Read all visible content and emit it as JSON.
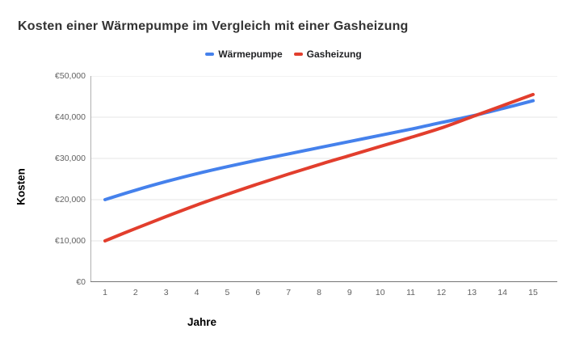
{
  "title": "Kosten einer Wärmepumpe im Vergleich mit einer Gasheizung",
  "colors": {
    "background": "#ffffff",
    "title_text": "#333333",
    "legend_text": "#202124",
    "axis_title_text": "#000000",
    "tick_label_text": "#616161",
    "gridline": "#e6e6e6",
    "y_axis_line": "#b0b0b0",
    "x_baseline": "#757575",
    "waermepumpe_blue": "#4581ec",
    "gasheizung_red": "#e23e2d"
  },
  "chart_data": {
    "type": "line",
    "title": "Kosten einer Wärmepumpe im Vergleich mit einer Gasheizung",
    "xlabel": "Jahre",
    "ylabel": "Kosten",
    "x": [
      1,
      2,
      3,
      4,
      5,
      6,
      7,
      8,
      9,
      10,
      11,
      12,
      13,
      14,
      15
    ],
    "series": [
      {
        "name": "Wärmepumpe",
        "color": "#4581ec",
        "values": [
          20000,
          22300,
          24400,
          26300,
          28000,
          29600,
          31100,
          32600,
          34100,
          35600,
          37100,
          38700,
          40300,
          42100,
          44000
        ]
      },
      {
        "name": "Gasheizung",
        "color": "#e23e2d",
        "values": [
          10000,
          13000,
          15900,
          18700,
          21300,
          23800,
          26200,
          28500,
          30700,
          32900,
          35100,
          37400,
          40100,
          42800,
          45500
        ]
      }
    ],
    "ylim": [
      0,
      50000
    ],
    "ytick_step": 10000,
    "ytick_labels": [
      "€0",
      "€10,000",
      "€20,000",
      "€30,000",
      "€40,000",
      "€50,000"
    ],
    "grid": true,
    "legend_position": "top",
    "smooth": true,
    "annotations": []
  }
}
